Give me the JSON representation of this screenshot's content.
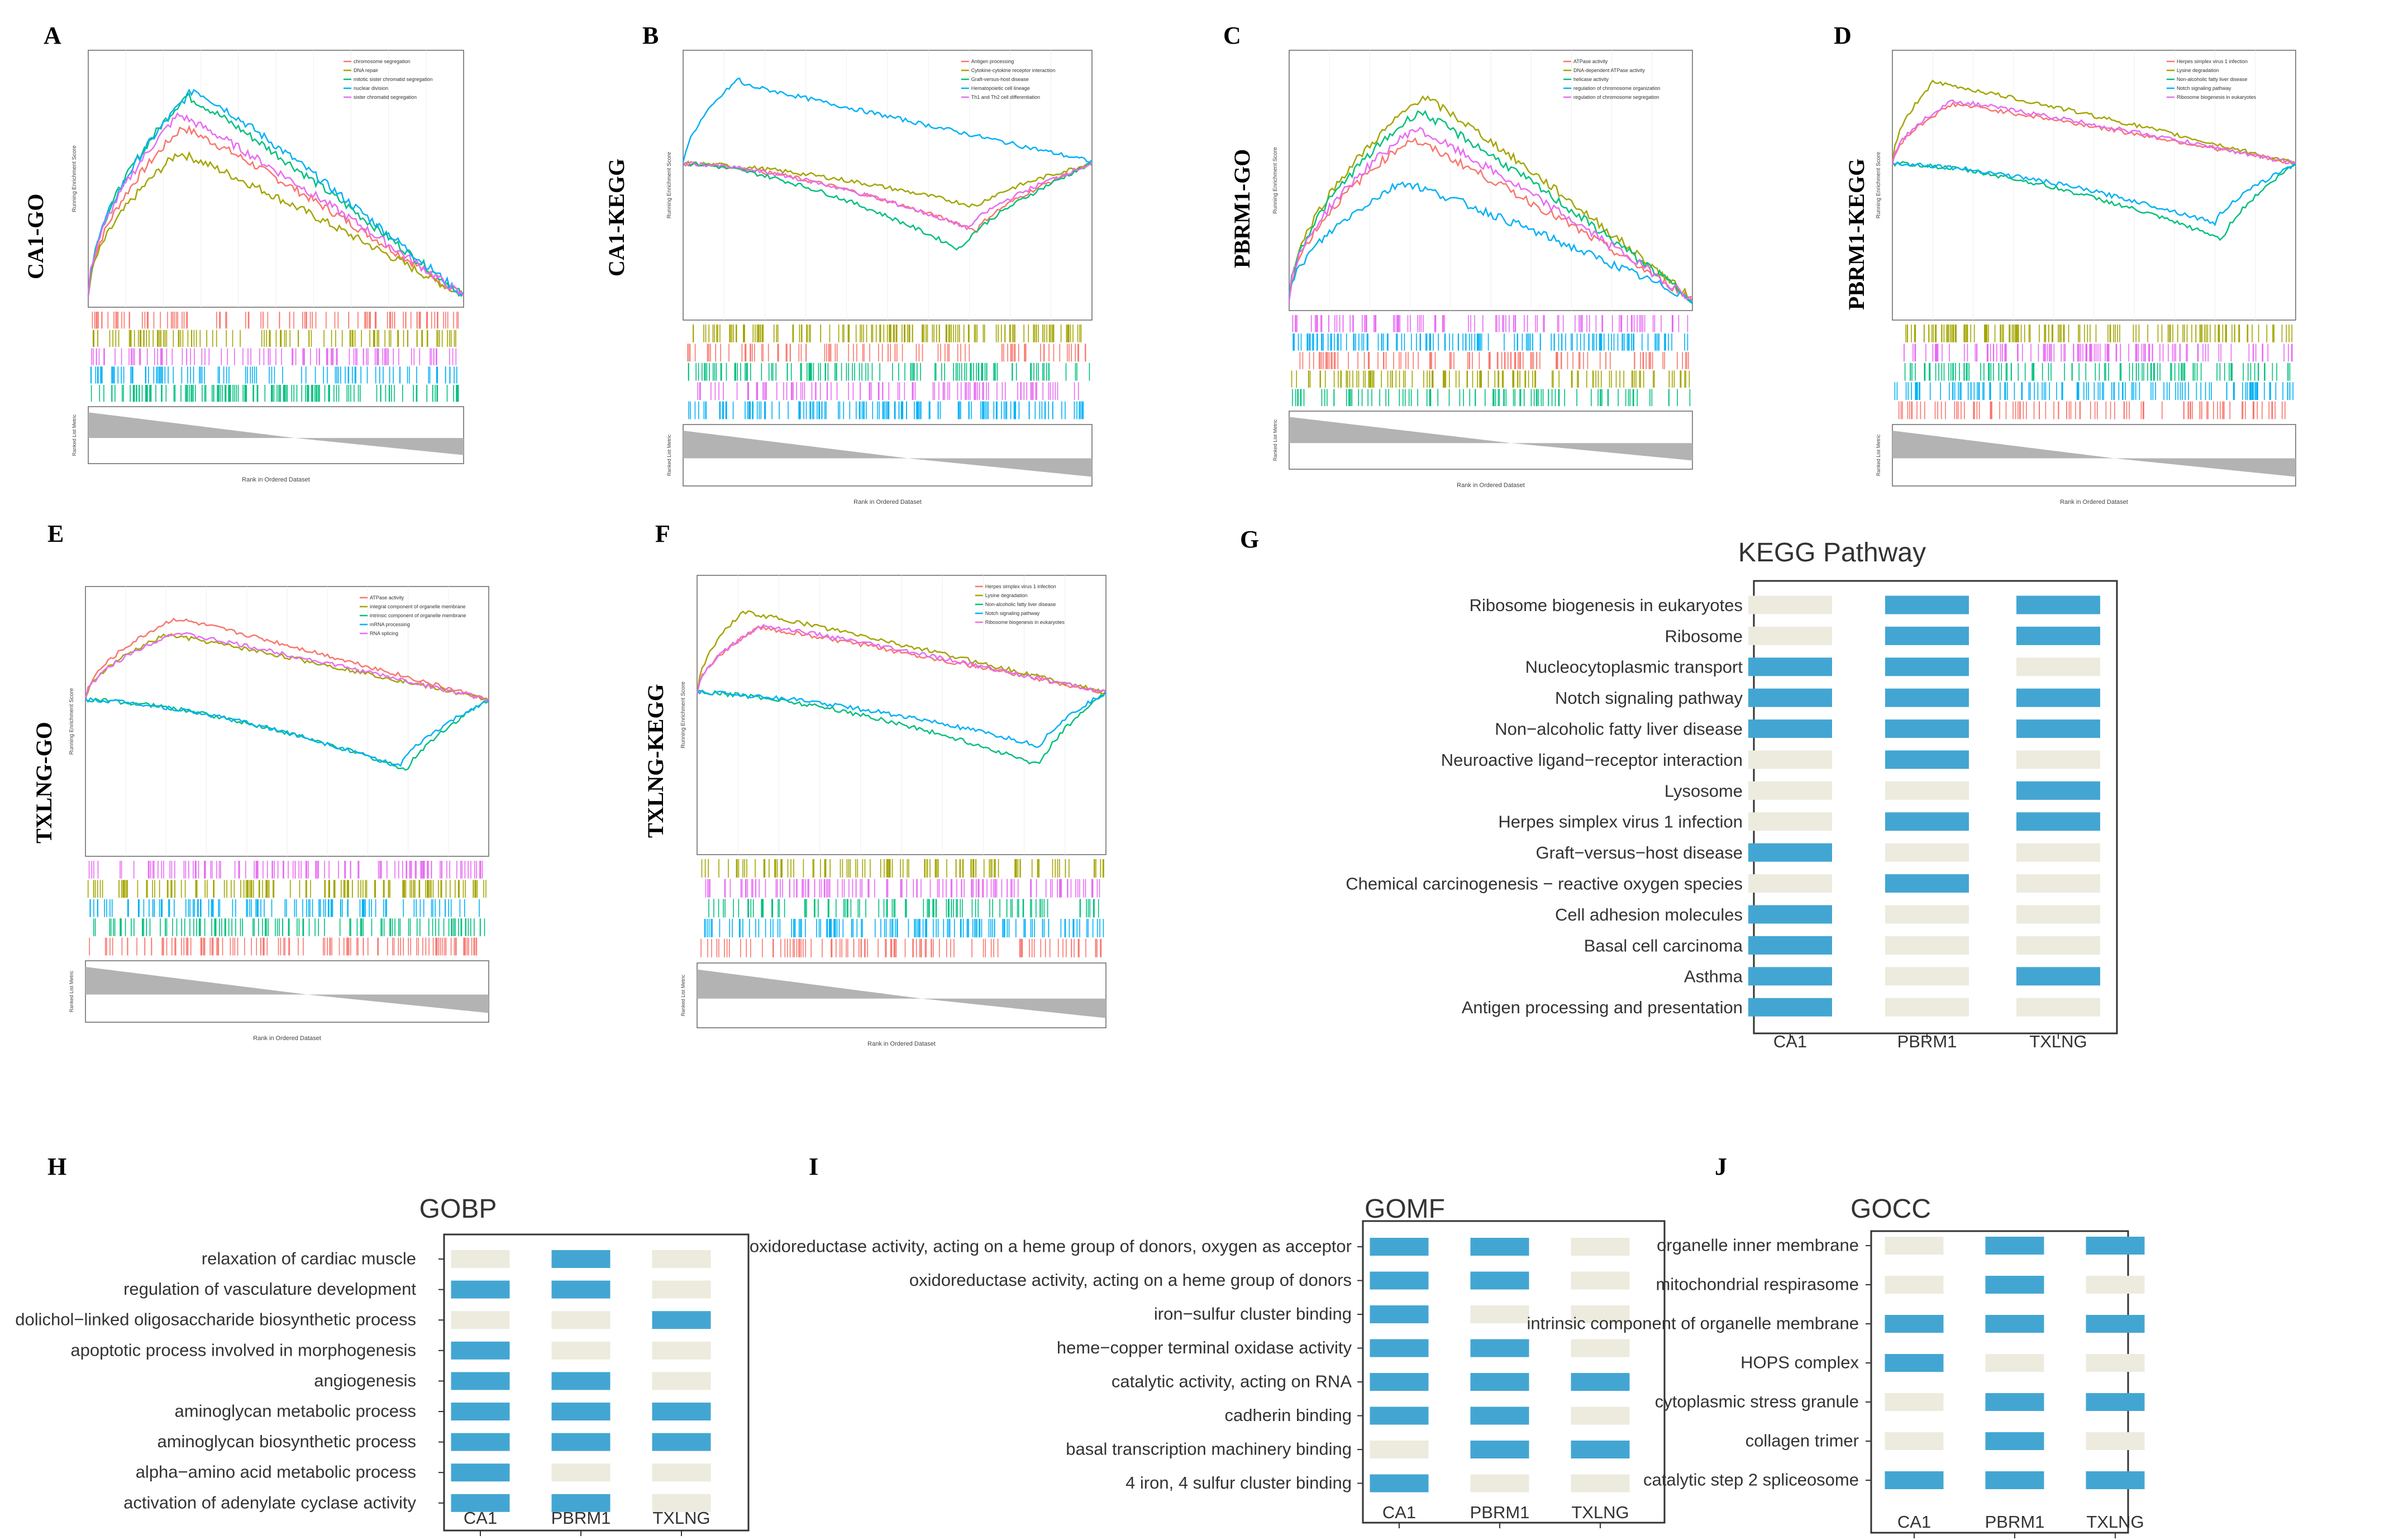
{
  "colors": {
    "present": "#43a6d2",
    "absent": "#ecebde",
    "series": [
      "#f8766d",
      "#a3a500",
      "#00bf7d",
      "#00b0f6",
      "#e76bf3"
    ],
    "metric_fill": "#b3b3b3"
  },
  "gsea_panels": [
    {
      "letter": "A",
      "side_label": "CA1-GO",
      "ylabel": "Running Enrichment Score",
      "xlabel": "Rank in Ordered Dataset",
      "metric_label": "Ranked List Metric",
      "legend": [
        "chromosome segregation",
        "DNA repair",
        "mitotic sister chromatid segregation",
        "nuclear division",
        "sister chromatid segregation"
      ]
    },
    {
      "letter": "B",
      "side_label": "CA1-KEGG",
      "ylabel": "Running Enrichment Score",
      "xlabel": "Rank in Ordered Dataset",
      "metric_label": "Ranked List Metric",
      "legend": [
        "Antigen processing",
        "Cytokine-cytokine receptor interaction",
        "Graft-versus-host disease",
        "Hematopoietic cell lineage",
        "Th1 and Th2 cell differentiation"
      ]
    },
    {
      "letter": "C",
      "side_label": "PBRM1-GO",
      "ylabel": "Running Enrichment Score",
      "xlabel": "Rank in Ordered Dataset",
      "metric_label": "Ranked List Metric",
      "legend": [
        "ATPase activity",
        "DNA-dependent ATPase activity",
        "helicase activity",
        "regulation of chromosome organization",
        "regulation of chromosome segregation"
      ]
    },
    {
      "letter": "D",
      "side_label": "PBRM1-KEGG",
      "ylabel": "Running Enrichment Score",
      "xlabel": "Rank in Ordered Dataset",
      "metric_label": "Ranked List Metric",
      "legend": [
        "Herpes simplex virus 1 infection",
        "Lysine degradation",
        "Non-alcoholic fatty liver disease",
        "Notch signaling pathway",
        "Ribosome biogenesis in eukaryotes"
      ]
    },
    {
      "letter": "E",
      "side_label": "TXLNG-GO",
      "ylabel": "Running Enrichment Score",
      "xlabel": "Rank in Ordered Dataset",
      "metric_label": "Ranked List Metric",
      "legend": [
        "ATPase activity",
        "integral component of organelle membrane",
        "intrinsic component of organelle membrane",
        "mRNA processing",
        "RNA splicing"
      ]
    },
    {
      "letter": "F",
      "side_label": "TXLNG-KEGG",
      "ylabel": "Running Enrichment Score",
      "xlabel": "Rank in Ordered Dataset",
      "metric_label": "Ranked List Metric",
      "legend": [
        "Herpes simplex virus 1 infection",
        "Lysine degradation",
        "Non-alcoholic fatty liver disease",
        "Notch signaling pathway",
        "Ribosome biogenesis in eukaryotes"
      ]
    }
  ],
  "chart_data": [
    {
      "type": "table",
      "panel": "G",
      "title": "KEGG Pathway",
      "columns": [
        "CA1",
        "PBRM1",
        "TXLNG"
      ],
      "rows": [
        "Ribosome biogenesis in eukaryotes",
        "Ribosome",
        "Nucleocytoplasmic transport",
        "Notch signaling pathway",
        "Non−alcoholic fatty liver disease",
        "Neuroactive ligand−receptor interaction",
        "Lysosome",
        "Herpes simplex virus 1 infection",
        "Graft−versus−host disease",
        "Chemical carcinogenesis − reactive oxygen species",
        "Cell adhesion molecules",
        "Basal cell carcinoma",
        "Asthma",
        "Antigen processing and presentation"
      ],
      "values": [
        [
          0,
          1,
          1
        ],
        [
          0,
          1,
          1
        ],
        [
          1,
          1,
          0
        ],
        [
          1,
          1,
          1
        ],
        [
          1,
          1,
          1
        ],
        [
          0,
          1,
          0
        ],
        [
          0,
          0,
          1
        ],
        [
          0,
          1,
          1
        ],
        [
          1,
          0,
          0
        ],
        [
          0,
          1,
          0
        ],
        [
          1,
          0,
          0
        ],
        [
          1,
          0,
          0
        ],
        [
          1,
          0,
          1
        ],
        [
          1,
          0,
          0
        ]
      ]
    },
    {
      "type": "table",
      "panel": "H",
      "title": "GOBP",
      "columns": [
        "CA1",
        "PBRM1",
        "TXLNG"
      ],
      "rows": [
        "relaxation of cardiac muscle",
        "regulation of vasculature development",
        "dolichol−linked oligosaccharide biosynthetic process",
        "apoptotic process involved in morphogenesis",
        "angiogenesis",
        "aminoglycan metabolic process",
        "aminoglycan biosynthetic process",
        "alpha−amino acid metabolic process",
        "activation of adenylate cyclase activity"
      ],
      "values": [
        [
          0,
          1,
          0
        ],
        [
          1,
          1,
          0
        ],
        [
          0,
          0,
          1
        ],
        [
          1,
          0,
          0
        ],
        [
          1,
          1,
          0
        ],
        [
          1,
          1,
          1
        ],
        [
          1,
          1,
          1
        ],
        [
          1,
          0,
          0
        ],
        [
          1,
          1,
          0
        ]
      ]
    },
    {
      "type": "table",
      "panel": "I",
      "title": "GOMF",
      "columns": [
        "CA1",
        "PBRM1",
        "TXLNG"
      ],
      "rows": [
        "oxidoreductase activity, acting on a heme group of donors, oxygen as acceptor",
        "oxidoreductase activity, acting on a heme group of donors",
        "iron−sulfur cluster binding",
        "heme−copper terminal oxidase activity",
        "catalytic activity, acting on RNA",
        "cadherin binding",
        "basal transcription machinery binding",
        "4 iron, 4 sulfur cluster binding"
      ],
      "values": [
        [
          1,
          1,
          0
        ],
        [
          1,
          1,
          0
        ],
        [
          1,
          0,
          0
        ],
        [
          1,
          1,
          0
        ],
        [
          1,
          1,
          1
        ],
        [
          1,
          1,
          0
        ],
        [
          0,
          1,
          1
        ],
        [
          1,
          0,
          0
        ]
      ]
    },
    {
      "type": "table",
      "panel": "J",
      "title": "GOCC",
      "columns": [
        "CA1",
        "PBRM1",
        "TXLNG"
      ],
      "rows": [
        "organelle inner membrane",
        "mitochondrial respirasome",
        "intrinsic component of organelle membrane",
        "HOPS complex",
        "cytoplasmic stress granule",
        "collagen trimer",
        "catalytic step 2 spliceosome"
      ],
      "values": [
        [
          0,
          1,
          1
        ],
        [
          0,
          1,
          0
        ],
        [
          1,
          1,
          1
        ],
        [
          1,
          0,
          0
        ],
        [
          0,
          1,
          1
        ],
        [
          0,
          1,
          0
        ],
        [
          1,
          1,
          1
        ]
      ]
    }
  ]
}
